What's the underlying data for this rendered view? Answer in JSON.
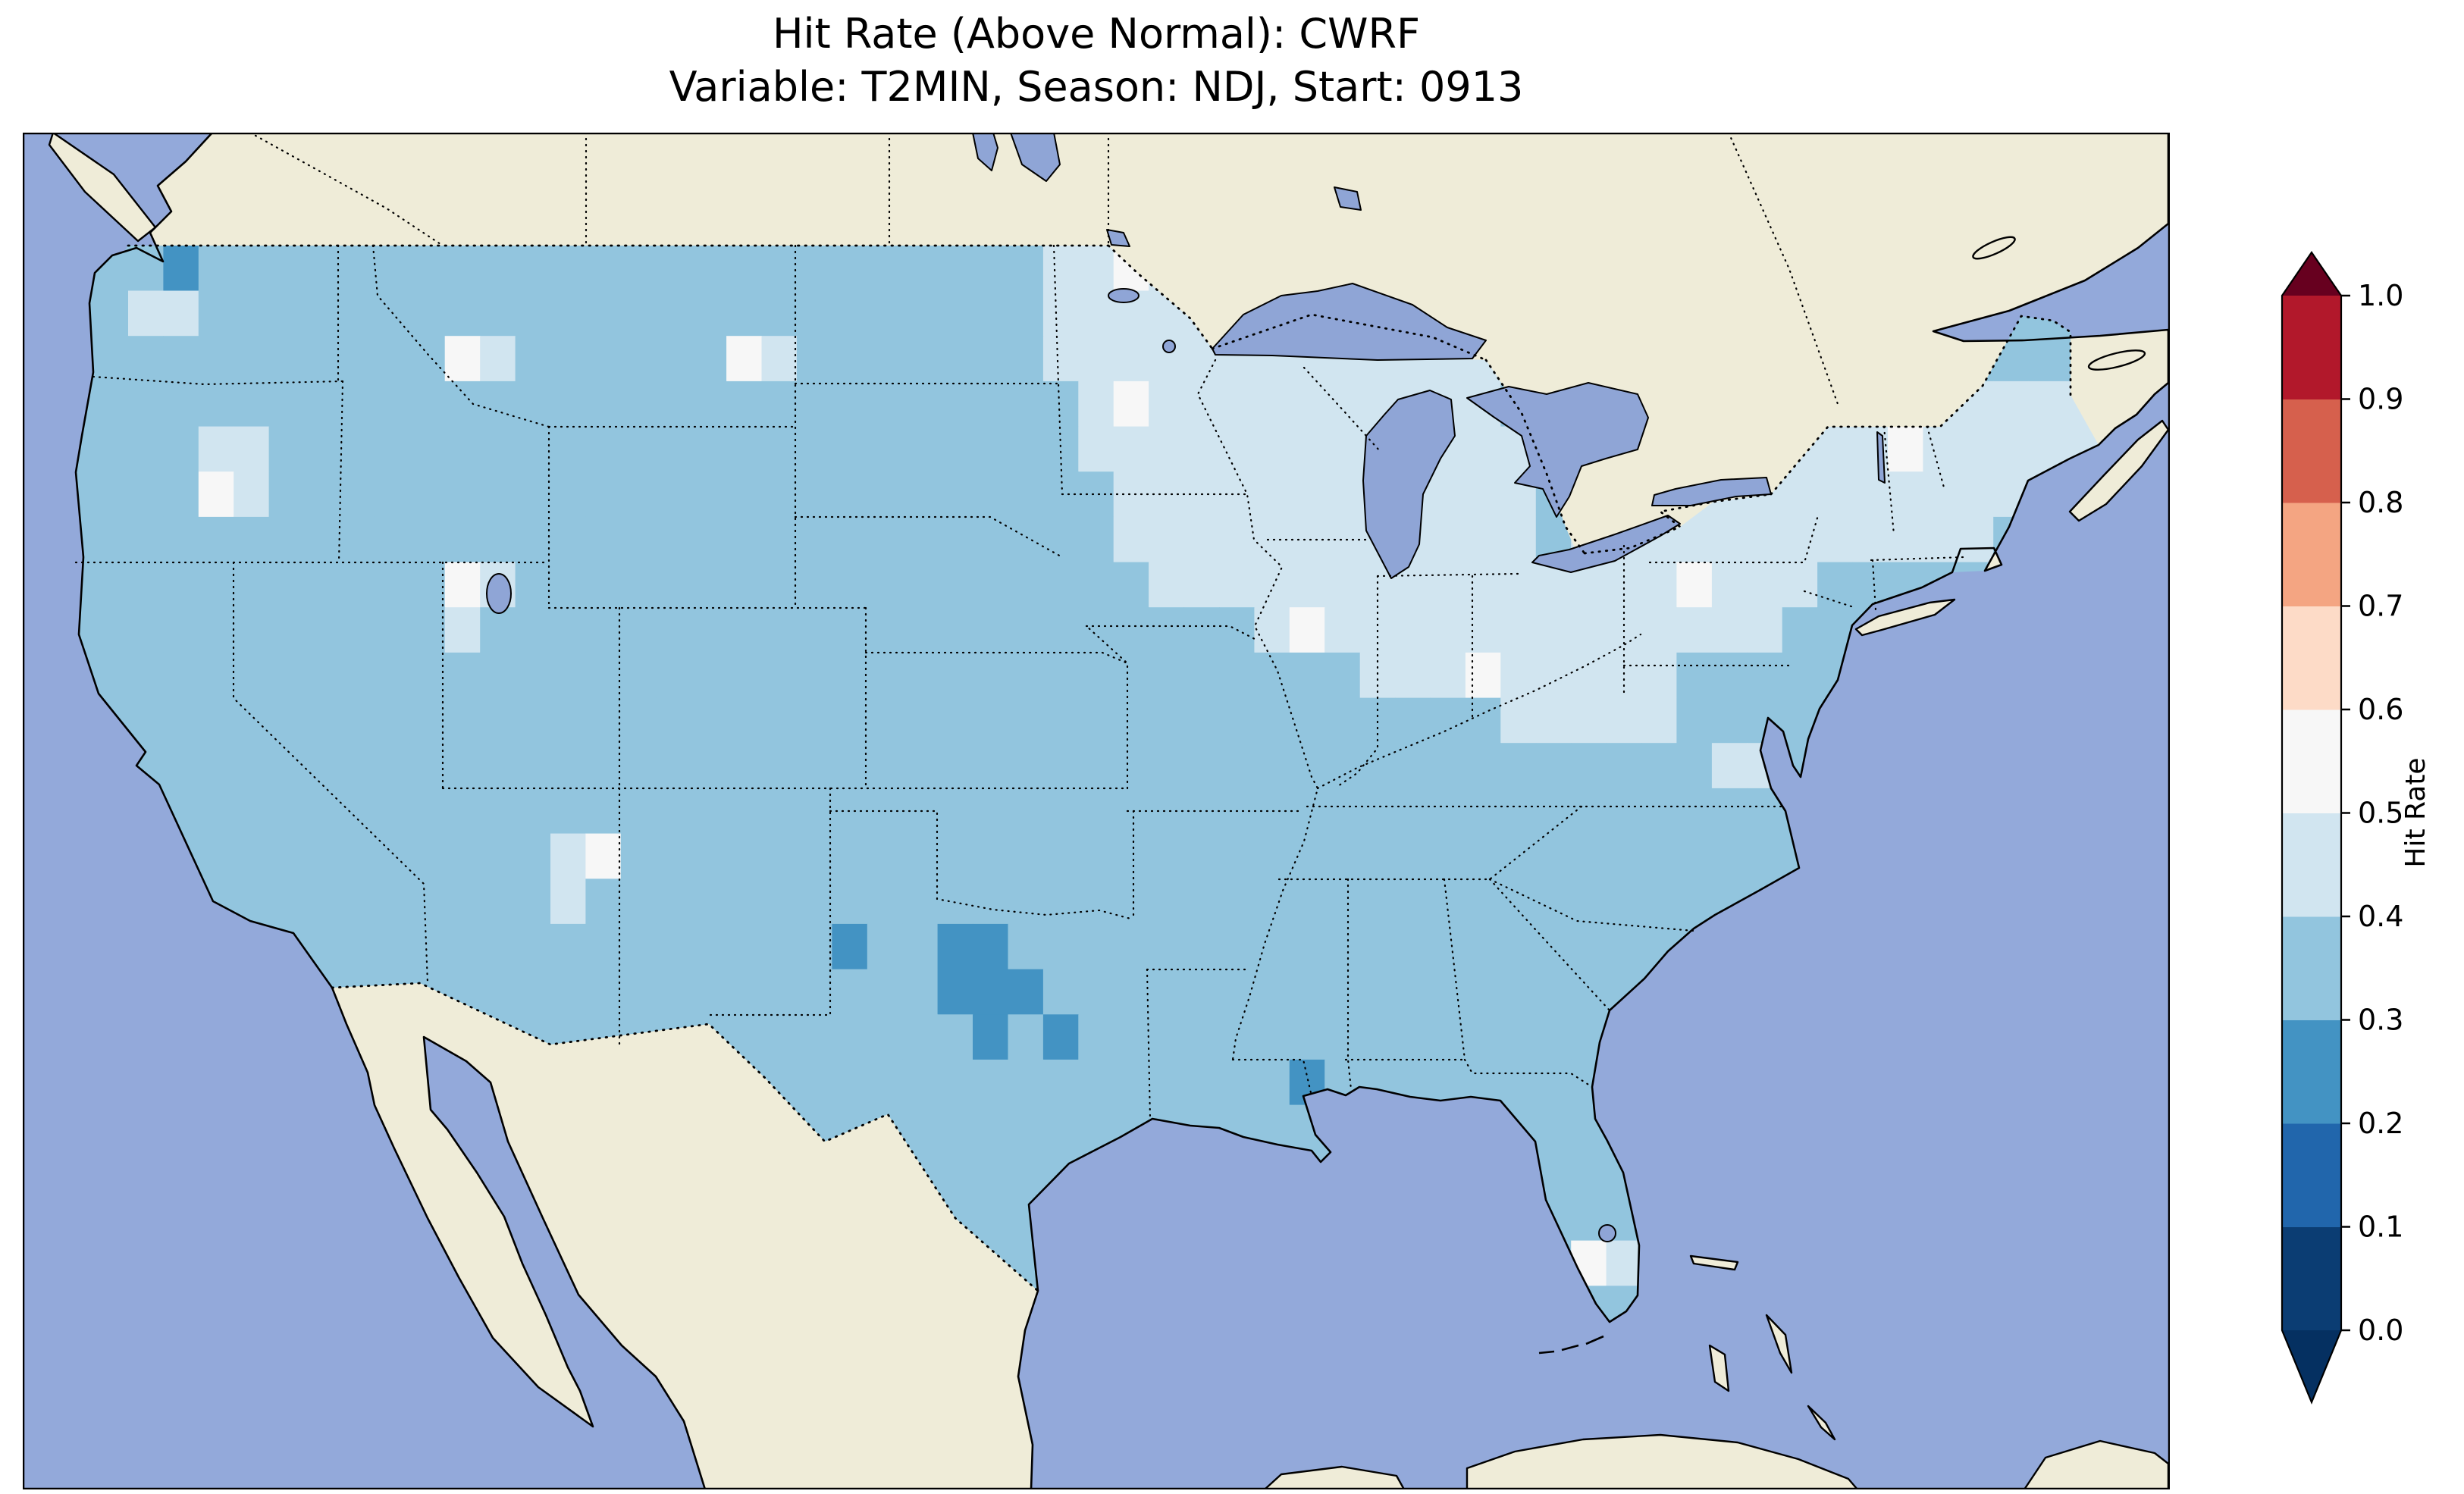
{
  "figure": {
    "title_line1": "Hit Rate (Above Normal): CWRF",
    "title_line2": "Variable: T2MIN, Season: NDJ, Start: 0913"
  },
  "chart_data": {
    "type": "heatmap",
    "title": "Hit Rate (Above Normal): CWRF",
    "subtitle": "Variable: T2MIN, Season: NDJ, Start: 0913",
    "metric": "Hit Rate (Above Normal)",
    "model": "CWRF",
    "variable": "T2MIN",
    "season": "NDJ",
    "start": "0913",
    "colorbar": {
      "label": "Hit Rate",
      "ticks": [
        "0.0",
        "0.1",
        "0.2",
        "0.3",
        "0.4",
        "0.5",
        "0.6",
        "0.7",
        "0.8",
        "0.9",
        "1.0"
      ],
      "orientation": "vertical",
      "extend": "both",
      "segment_colors_bottom_to_top": [
        "#0b3d73",
        "#2166ac",
        "#4393c3",
        "#92c5de",
        "#d1e5f0",
        "#f7f7f7",
        "#fddbc7",
        "#f4a582",
        "#d6604d",
        "#b2182b"
      ],
      "extend_colors": {
        "over": "#67001f",
        "under": "#053061"
      }
    },
    "map_colors": {
      "ocean": "#93a9da",
      "lake": "#8fa5d6",
      "land": "#efecd8",
      "coastline": "#000000"
    },
    "value_bins_on_map": {
      "0.2-0.3": "#4393c3",
      "0.3-0.4": "#92c5de",
      "0.4-0.5": "#d1e5f0",
      "0.5-0.6": "#f7f7f7"
    },
    "grid": {
      "note": "Approximate 1-degree hit-rate field over CONUS; char = colorbar bin index (2:0.2-0.3, 3:0.3-0.4, 4:0.4-0.5, 5:0.5-0.6)",
      "cols": 59,
      "rows": 27,
      "cell_w": 46.42,
      "cell_h": 59.67,
      "y0": 89.5,
      "bin_colors": {
        "2": "#4393c3",
        "3": "#92c5de",
        "4": "#d1e5f0",
        "5": "#f7f7f7"
      },
      "rows_bins": [
        "33333333333333333333333333333333333333333333333333333333333",
        "33332333333333333333333333333445444333333333333333333333333",
        "33344333333333333333333333333444444443333333333333333333333",
        "33333333333354333333543333333444444444444443333333333333333",
        "33333333333333333333333333333345444444444433333333334444444",
        "33333443333333333333333333333344444444444443333444444544444",
        "33333543333333333333333333333334444444444443444444444444443",
        "33333333333333333333333333333334444444444443444444444444333",
        "33333333333354333333333333333333444444444444444544433333333",
        "33333333333343333333333333333333333454444444444444333333333",
        "33333333333333333333333333333333333333444544444333333333333",
        "33333333333333333333333333333333333333333344444333333333333",
        "33333333333333333333333333333333333333333333333344333333333",
        "33333333333333333333333333333333333333333333333333333333333",
        "33333333333333345333333333333333333333333333333333333333333",
        "33333333333333343333333333333333333333333333333333333333333",
        "33333333333333333333333233223333333333333333333333333333333",
        "33333333333333333333333333222333333333333333333333333333333",
        "33333333333333333333333333323233333333333333333333333333333",
        "33333333333333333333333333333333333323333333333333333333333",
        "33333333333333333333333333333333333333333333333333333333333",
        "33333333333333333333333333333333333333333333333333333333333",
        "33333333333333333333333333333333333333333333333333333333333",
        "33333333333333333333333333333333333333333333543333333333333",
        "33333333333333333333333333333333333333333333333333333333333",
        "33333333333333333333333333333333333333333333333333333333333",
        "33333333333333333333333333333333333333333333333333333333333"
      ]
    }
  }
}
